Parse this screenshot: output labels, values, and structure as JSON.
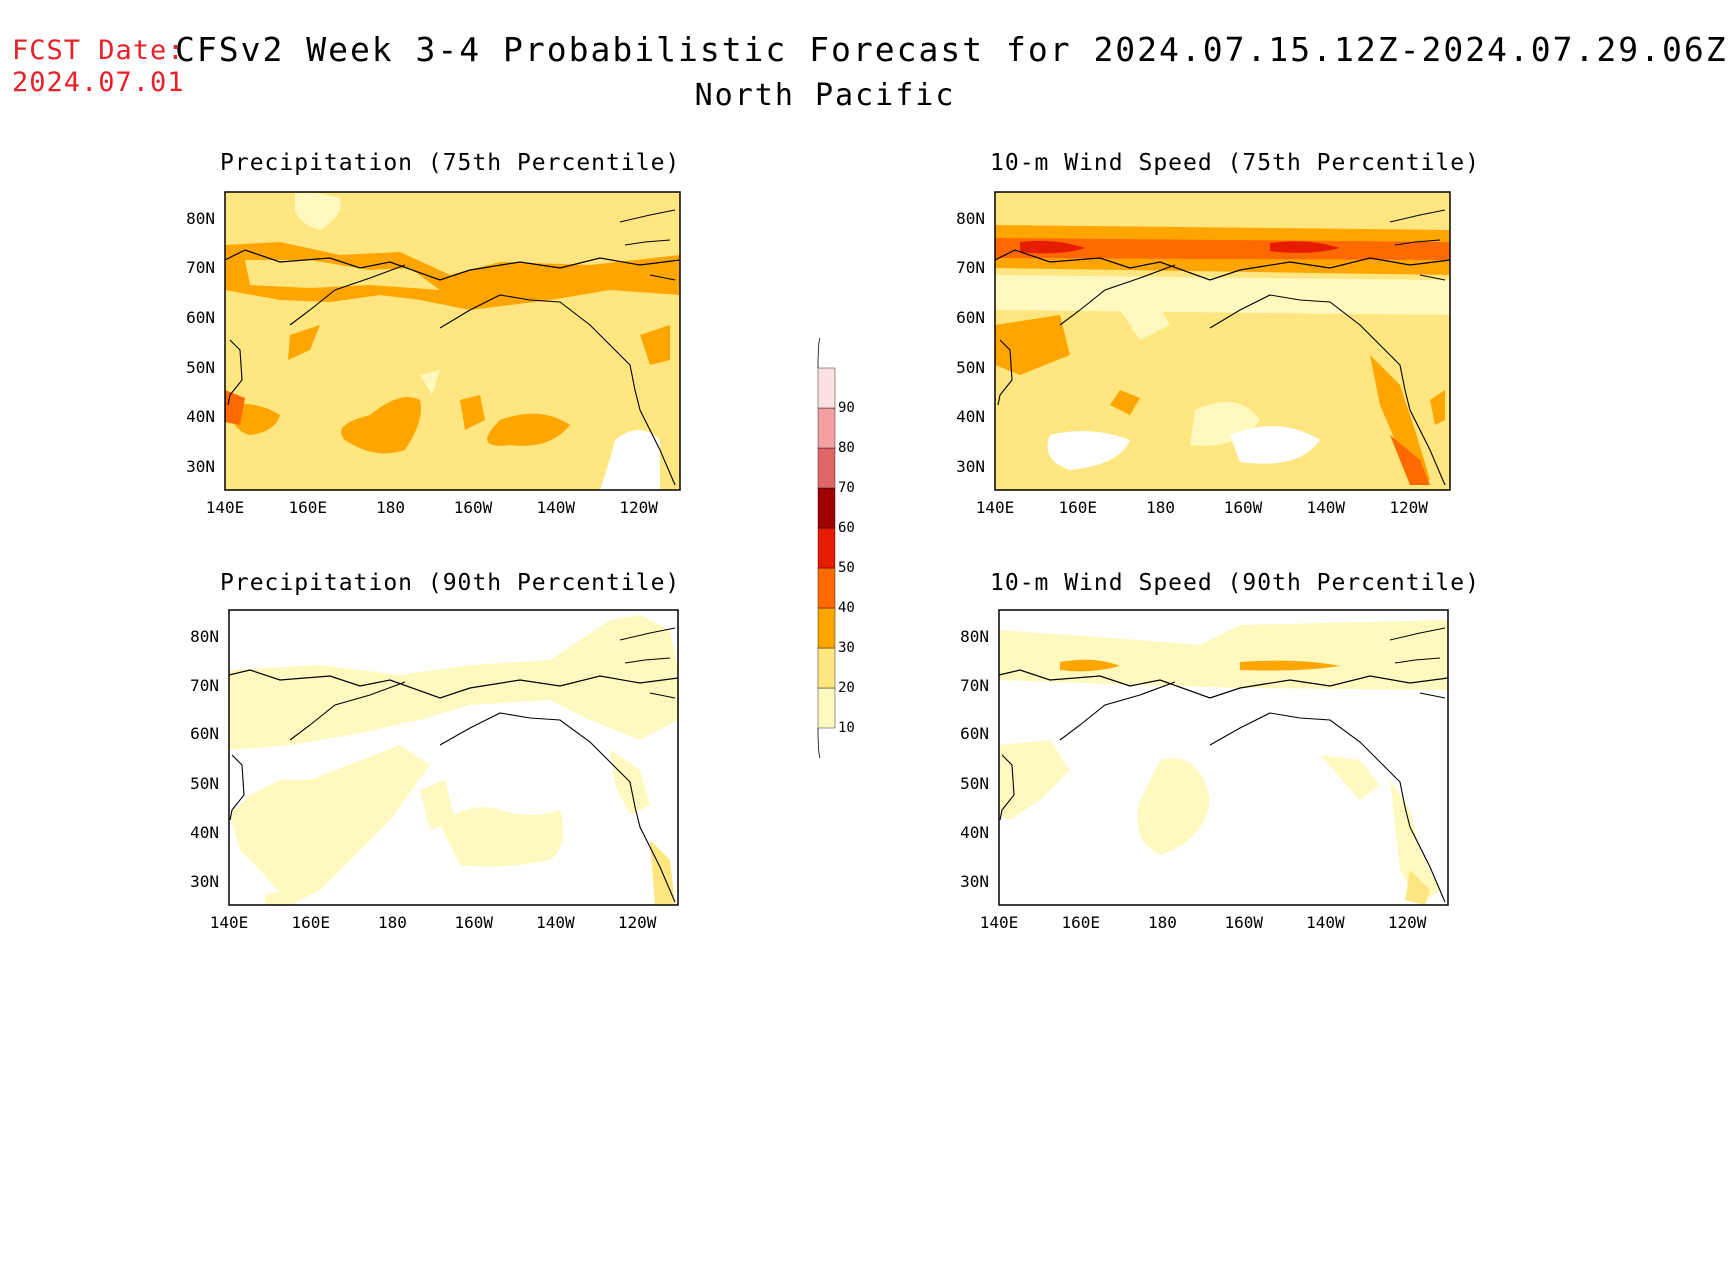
{
  "header": {
    "fcst_label": "FCST Date:",
    "fcst_date": "2024.07.01",
    "title": "CFSv2 Week 3-4 Probabilistic Forecast for 2024.07.15.12Z-2024.07.29.06Z",
    "region": "North Pacific"
  },
  "panels": [
    {
      "title": "Precipitation (75th Percentile)"
    },
    {
      "title": "10-m Wind Speed (75th Percentile)"
    },
    {
      "title": "Precipitation (90th Percentile)"
    },
    {
      "title": "10-m Wind Speed (90th Percentile)"
    }
  ],
  "axes": {
    "lat_labels": [
      "80N",
      "70N",
      "60N",
      "50N",
      "40N",
      "30N"
    ],
    "lon_labels": [
      "140E",
      "160E",
      "180",
      "160W",
      "140W",
      "120W"
    ]
  },
  "colorbar": {
    "levels": [
      "10",
      "20",
      "30",
      "40",
      "50",
      "60",
      "70",
      "80",
      "90"
    ],
    "colors": [
      "#fff9c0",
      "#ffe680",
      "#ffa500",
      "#ff6a00",
      "#e61c00",
      "#a00000",
      "#e06666",
      "#f4a0a0",
      "#fde0e0"
    ]
  }
}
